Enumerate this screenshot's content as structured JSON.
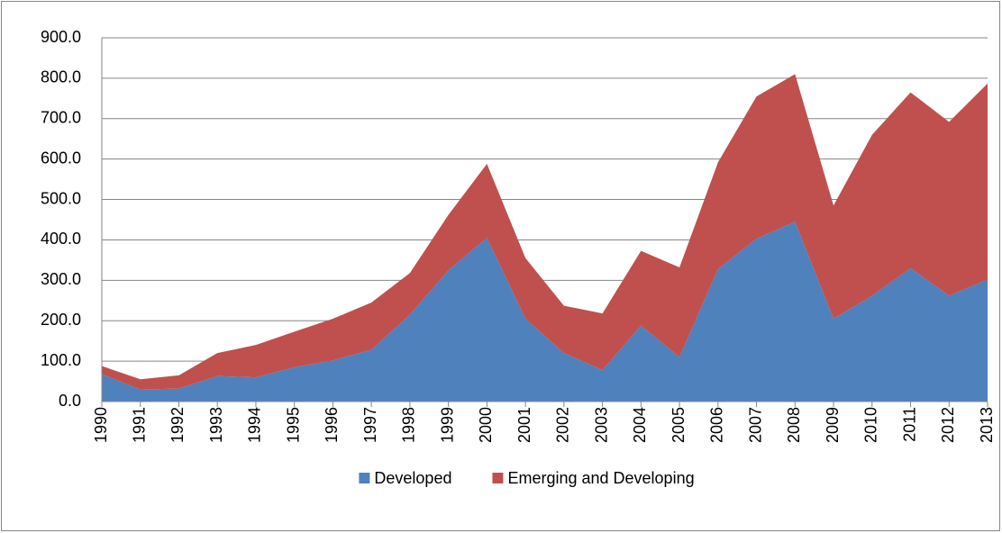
{
  "chart_data": {
    "type": "stacked_area",
    "categories": [
      "1990",
      "1991",
      "1992",
      "1993",
      "1994",
      "1995",
      "1996",
      "1997",
      "1998",
      "1999",
      "2000",
      "2001",
      "2002",
      "2003",
      "2004",
      "2005",
      "2006",
      "2007",
      "2008",
      "2009",
      "2010",
      "2011",
      "2012",
      "2013"
    ],
    "series": [
      {
        "name": "Developed",
        "color": "#4f81bd",
        "values": [
          68,
          30,
          32,
          63,
          60,
          85,
          102,
          128,
          215,
          325,
          405,
          205,
          120,
          78,
          188,
          110,
          328,
          403,
          445,
          205,
          262,
          330,
          262,
          302
        ]
      },
      {
        "name": "Emerging and Developing",
        "color": "#c0504d",
        "values": [
          20,
          25,
          33,
          57,
          80,
          88,
          103,
          117,
          103,
          137,
          183,
          150,
          117,
          140,
          185,
          222,
          264,
          352,
          365,
          280,
          398,
          435,
          430,
          485
        ]
      }
    ],
    "ylim": [
      0,
      900
    ],
    "yticks": [
      {
        "value": 0,
        "label": "0.0"
      },
      {
        "value": 100,
        "label": "100.0"
      },
      {
        "value": 200,
        "label": "200.0"
      },
      {
        "value": 300,
        "label": "300.0"
      },
      {
        "value": 400,
        "label": "400.0"
      },
      {
        "value": 500,
        "label": "500.0"
      },
      {
        "value": 600,
        "label": "600.0"
      },
      {
        "value": 700,
        "label": "700.0"
      },
      {
        "value": 800,
        "label": "800.0"
      },
      {
        "value": 900,
        "label": "900.0"
      }
    ],
    "grid": true,
    "legend": "bottom"
  }
}
